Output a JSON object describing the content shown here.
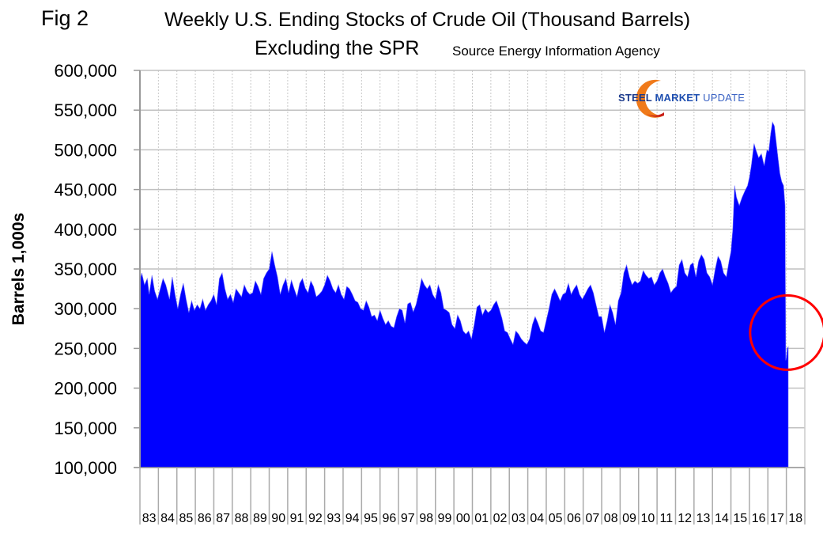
{
  "figure_label": "Fig 2",
  "title": "Weekly U.S. Ending Stocks of Crude Oil  (Thousand Barrels)",
  "subtitle": "Excluding the SPR",
  "source": "Source Energy Information Agency",
  "logo": {
    "word1": "STEEL",
    "word2": "MARKET",
    "word3": "UPDATE"
  },
  "colors": {
    "fill": "#0000ff",
    "grid": "#c0c0c0",
    "annotation_circle": "#ff0000",
    "logo_orange": "#f07a1a"
  },
  "chart_data": {
    "type": "area",
    "title": "Weekly U.S. Ending Stocks of Crude Oil  (Thousand Barrels) Excluding the SPR",
    "xlabel": "",
    "ylabel": "Barrels 1,000s",
    "ylim": [
      100000,
      600000
    ],
    "yticks": [
      100000,
      150000,
      200000,
      250000,
      300000,
      350000,
      400000,
      450000,
      500000,
      550000,
      600000
    ],
    "ytick_labels": [
      "100,000",
      "150,000",
      "200,000",
      "250,000",
      "300,000",
      "350,000",
      "400,000",
      "450,000",
      "500,000",
      "550,000",
      "600,000"
    ],
    "xlim": [
      1983,
      2019
    ],
    "xtick_labels": [
      "83",
      "84",
      "85",
      "86",
      "87",
      "88",
      "89",
      "90",
      "91",
      "92",
      "93",
      "94",
      "95",
      "96",
      "97",
      "98",
      "99",
      "00",
      "01",
      "02",
      "03",
      "04",
      "05",
      "06",
      "07",
      "08",
      "09",
      "10",
      "11",
      "12",
      "13",
      "14",
      "15",
      "16",
      "17",
      "18"
    ],
    "grid": true,
    "legend": "none",
    "annotation": "red circle around early-2018 values",
    "series": [
      {
        "name": "Weekly U.S. Ending Stocks of Crude Oil excl. SPR",
        "x": [
          1983.0,
          1983.1,
          1983.25,
          1983.4,
          1983.5,
          1983.65,
          1983.8,
          1983.95,
          1984.1,
          1984.25,
          1984.4,
          1984.6,
          1984.75,
          1984.9,
          1985.05,
          1985.2,
          1985.35,
          1985.5,
          1985.65,
          1985.8,
          1985.95,
          1986.1,
          1986.25,
          1986.4,
          1986.55,
          1986.7,
          1986.85,
          1987.0,
          1987.15,
          1987.3,
          1987.45,
          1987.6,
          1987.75,
          1987.9,
          1988.05,
          1988.2,
          1988.35,
          1988.5,
          1988.65,
          1988.8,
          1988.95,
          1989.1,
          1989.25,
          1989.4,
          1989.55,
          1989.7,
          1989.85,
          1990.0,
          1990.15,
          1990.3,
          1990.45,
          1990.6,
          1990.75,
          1990.9,
          1991.05,
          1991.2,
          1991.35,
          1991.5,
          1991.65,
          1991.8,
          1991.95,
          1992.1,
          1992.25,
          1992.4,
          1992.55,
          1992.7,
          1992.85,
          1993.0,
          1993.15,
          1993.3,
          1993.45,
          1993.6,
          1993.75,
          1993.9,
          1994.05,
          1994.2,
          1994.35,
          1994.5,
          1994.65,
          1994.8,
          1994.95,
          1995.1,
          1995.25,
          1995.4,
          1995.55,
          1995.7,
          1995.85,
          1996.0,
          1996.15,
          1996.3,
          1996.45,
          1996.6,
          1996.75,
          1996.9,
          1997.05,
          1997.2,
          1997.35,
          1997.5,
          1997.65,
          1997.8,
          1997.95,
          1998.1,
          1998.25,
          1998.4,
          1998.55,
          1998.7,
          1998.85,
          1999.0,
          1999.15,
          1999.3,
          1999.45,
          1999.6,
          1999.75,
          1999.9,
          2000.05,
          2000.2,
          2000.35,
          2000.5,
          2000.65,
          2000.8,
          2000.95,
          2001.1,
          2001.25,
          2001.4,
          2001.55,
          2001.7,
          2001.85,
          2002.0,
          2002.15,
          2002.3,
          2002.45,
          2002.6,
          2002.75,
          2002.9,
          2003.05,
          2003.2,
          2003.35,
          2003.5,
          2003.65,
          2003.8,
          2003.95,
          2004.1,
          2004.25,
          2004.4,
          2004.55,
          2004.7,
          2004.85,
          2005.0,
          2005.15,
          2005.3,
          2005.45,
          2005.6,
          2005.75,
          2005.9,
          2006.05,
          2006.2,
          2006.35,
          2006.5,
          2006.65,
          2006.8,
          2006.95,
          2007.1,
          2007.25,
          2007.4,
          2007.55,
          2007.7,
          2007.85,
          2008.0,
          2008.15,
          2008.3,
          2008.45,
          2008.6,
          2008.75,
          2008.9,
          2009.05,
          2009.2,
          2009.35,
          2009.5,
          2009.65,
          2009.8,
          2009.95,
          2010.1,
          2010.25,
          2010.4,
          2010.55,
          2010.7,
          2010.85,
          2011.0,
          2011.15,
          2011.3,
          2011.45,
          2011.6,
          2011.75,
          2011.9,
          2012.05,
          2012.2,
          2012.35,
          2012.5,
          2012.65,
          2012.8,
          2012.95,
          2013.1,
          2013.25,
          2013.4,
          2013.55,
          2013.7,
          2013.85,
          2014.0,
          2014.15,
          2014.3,
          2014.45,
          2014.6,
          2014.75,
          2014.9,
          2015.0,
          2015.1,
          2015.2,
          2015.3,
          2015.45,
          2015.6,
          2015.75,
          2015.9,
          2016.0,
          2016.1,
          2016.25,
          2016.35,
          2016.5,
          2016.65,
          2016.8,
          2016.95,
          2017.05,
          2017.15,
          2017.25,
          2017.35,
          2017.45,
          2017.55,
          2017.65,
          2017.75,
          2017.85,
          2017.93,
          2017.97,
          2018.0,
          2018.05,
          2018.1
        ],
        "values": [
          335000,
          345000,
          330000,
          338000,
          318000,
          342000,
          322000,
          312000,
          325000,
          338000,
          330000,
          312000,
          340000,
          318000,
          300000,
          318000,
          332000,
          312000,
          295000,
          310000,
          298000,
          305000,
          300000,
          312000,
          298000,
          305000,
          310000,
          318000,
          305000,
          338000,
          345000,
          325000,
          312000,
          318000,
          308000,
          325000,
          320000,
          315000,
          330000,
          322000,
          318000,
          320000,
          335000,
          328000,
          318000,
          338000,
          345000,
          350000,
          372000,
          355000,
          340000,
          318000,
          330000,
          338000,
          320000,
          336000,
          325000,
          315000,
          332000,
          338000,
          326000,
          320000,
          335000,
          328000,
          315000,
          318000,
          322000,
          330000,
          342000,
          335000,
          325000,
          320000,
          330000,
          318000,
          312000,
          328000,
          325000,
          318000,
          310000,
          308000,
          300000,
          298000,
          310000,
          302000,
          290000,
          292000,
          285000,
          298000,
          288000,
          280000,
          285000,
          278000,
          276000,
          290000,
          300000,
          298000,
          282000,
          306000,
          308000,
          296000,
          305000,
          320000,
          338000,
          330000,
          325000,
          330000,
          318000,
          312000,
          330000,
          320000,
          300000,
          298000,
          295000,
          280000,
          275000,
          292000,
          285000,
          272000,
          268000,
          272000,
          262000,
          280000,
          302000,
          305000,
          292000,
          300000,
          295000,
          298000,
          305000,
          310000,
          300000,
          288000,
          272000,
          270000,
          262000,
          255000,
          272000,
          268000,
          262000,
          258000,
          255000,
          262000,
          280000,
          290000,
          282000,
          272000,
          270000,
          285000,
          300000,
          318000,
          325000,
          318000,
          310000,
          318000,
          320000,
          332000,
          318000,
          325000,
          330000,
          318000,
          312000,
          318000,
          325000,
          330000,
          320000,
          305000,
          290000,
          290000,
          270000,
          285000,
          305000,
          295000,
          280000,
          310000,
          320000,
          345000,
          355000,
          340000,
          330000,
          335000,
          332000,
          335000,
          348000,
          342000,
          338000,
          340000,
          330000,
          335000,
          345000,
          350000,
          340000,
          332000,
          320000,
          325000,
          328000,
          355000,
          362000,
          345000,
          340000,
          355000,
          358000,
          340000,
          360000,
          368000,
          362000,
          345000,
          340000,
          330000,
          350000,
          366000,
          360000,
          345000,
          340000,
          360000,
          372000,
          400000,
          455000,
          440000,
          430000,
          440000,
          448000,
          455000,
          465000,
          480000,
          508000,
          500000,
          490000,
          495000,
          480000,
          500000,
          498000,
          520000,
          535000,
          530000,
          510000,
          490000,
          470000,
          460000,
          455000,
          430000,
          235000,
          238000,
          250000,
          252000
        ]
      }
    ]
  }
}
